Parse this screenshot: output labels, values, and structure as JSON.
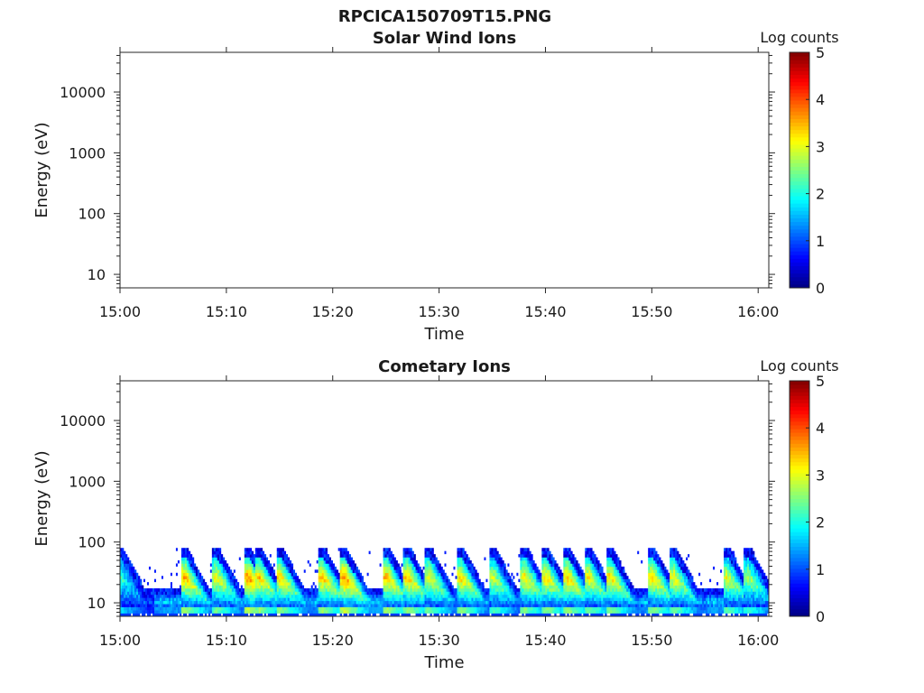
{
  "figure": {
    "title": "RPCICA150709T15.PNG"
  },
  "chart_data": [
    {
      "type": "heatmap",
      "title": "Solar Wind Ions",
      "xlabel": "Time",
      "ylabel": "Energy (eV)",
      "xticks": [
        "15:00",
        "15:10",
        "15:20",
        "15:30",
        "15:40",
        "15:50",
        "16:00"
      ],
      "xlim": [
        "15:00",
        "16:01"
      ],
      "yscale": "log",
      "yticks": [
        10,
        100,
        1000,
        10000
      ],
      "ytick_labels": [
        "10",
        "100",
        "1000",
        "10000"
      ],
      "ylim": [
        6,
        45000
      ],
      "colorbar": {
        "label": "Log counts",
        "range": [
          0,
          5
        ],
        "ticks": [
          "0",
          "1",
          "2",
          "3",
          "4",
          "5"
        ],
        "colormap": "jet"
      },
      "data": "empty"
    },
    {
      "type": "heatmap",
      "title": "Cometary Ions",
      "xlabel": "Time",
      "ylabel": "Energy (eV)",
      "xticks": [
        "15:00",
        "15:10",
        "15:20",
        "15:30",
        "15:40",
        "15:50",
        "16:00"
      ],
      "xlim": [
        "15:00",
        "16:01"
      ],
      "yscale": "log",
      "yticks": [
        10,
        100,
        1000,
        10000
      ],
      "ytick_labels": [
        "10",
        "100",
        "1000",
        "10000"
      ],
      "ylim": [
        6,
        45000
      ],
      "colorbar": {
        "label": "Log counts",
        "range": [
          0,
          5
        ],
        "ticks": [
          "0",
          "1",
          "2",
          "3",
          "4",
          "5"
        ],
        "colormap": "jet"
      },
      "energy_range": [
        6,
        80
      ],
      "peak_times": [
        "15:00",
        "15:06",
        "15:09",
        "15:12",
        "15:13",
        "15:15",
        "15:19",
        "15:21",
        "15:25",
        "15:27",
        "15:29",
        "15:32",
        "15:35",
        "15:38",
        "15:40",
        "15:42",
        "15:44",
        "15:46",
        "15:50",
        "15:52",
        "15:57",
        "15:59"
      ],
      "peak_levels": [
        2.2,
        3.6,
        3.2,
        3.8,
        3.5,
        3.4,
        3.5,
        3.9,
        3.6,
        3.5,
        3.2,
        3.4,
        3.0,
        3.3,
        3.4,
        3.5,
        3.3,
        3.4,
        3.4,
        3.2,
        3.1,
        2.8
      ]
    }
  ]
}
